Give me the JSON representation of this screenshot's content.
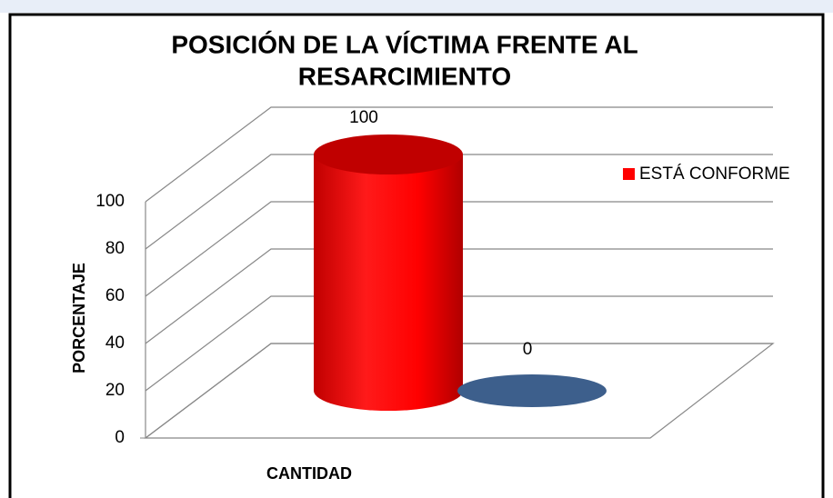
{
  "chart_data": {
    "type": "bar3d",
    "title": "POSICIÓN DE LA VÍCTIMA FRENTE AL RESARCIMIENTO",
    "x_label": "CANTIDAD",
    "y_label": "PORCENTAJE",
    "series": [
      {
        "name": "ESTÁ CONFORME",
        "color": "#ff0000",
        "values": [
          100
        ]
      },
      {
        "color": "#3d5f8c",
        "values": [
          0
        ]
      }
    ],
    "ylim": [
      0,
      100
    ],
    "yticks": [
      0,
      20,
      40,
      60,
      80,
      100
    ],
    "grid": true,
    "legend": "right"
  }
}
